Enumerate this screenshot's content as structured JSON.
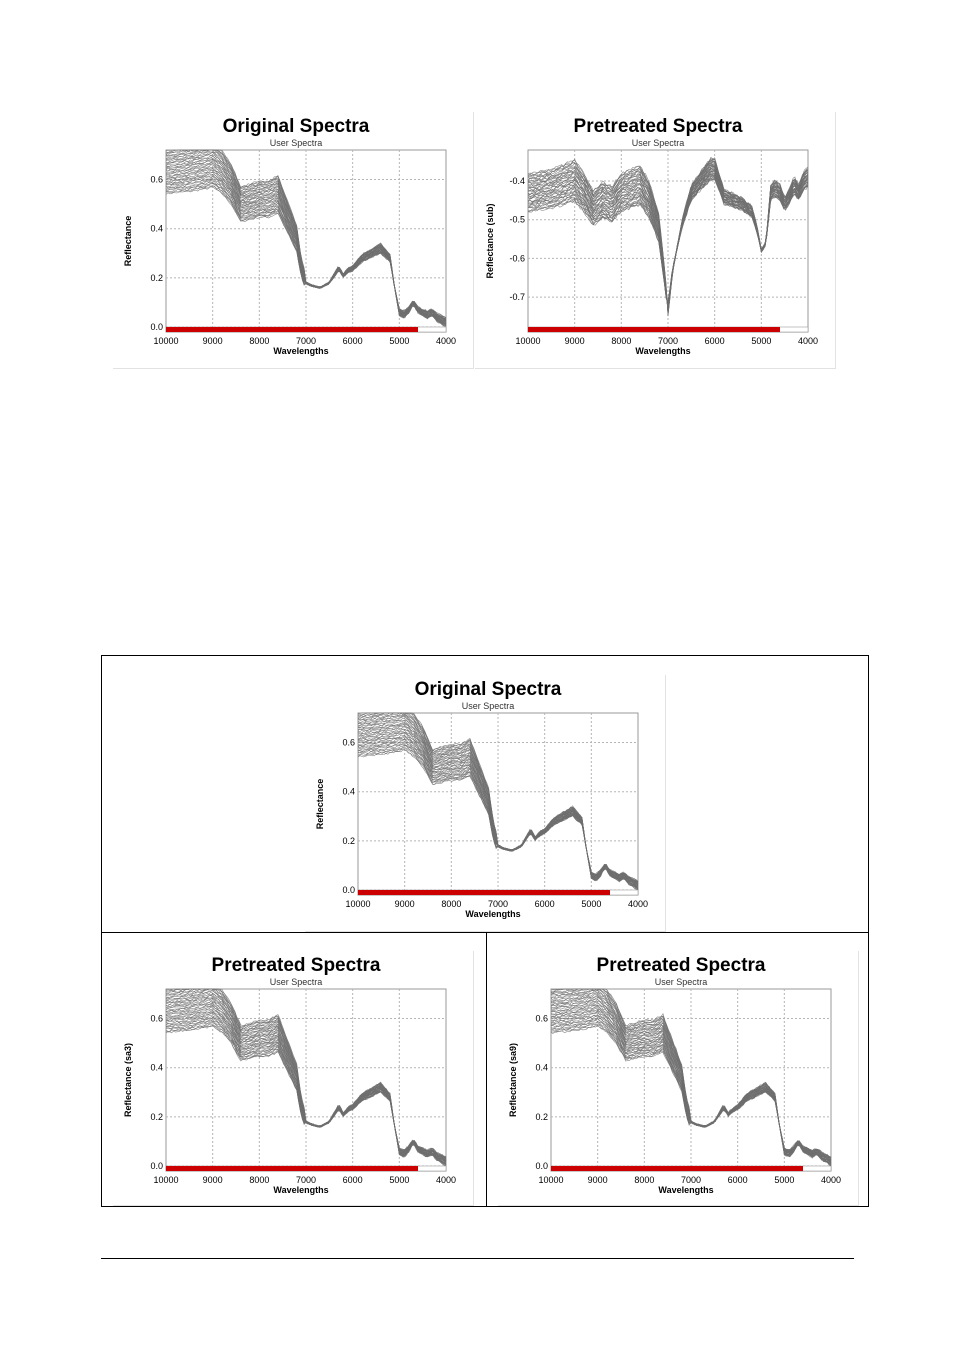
{
  "chart_data": [
    {
      "type": "line",
      "title": "Original Spectra",
      "subtitle": "User Spectra",
      "xlabel": "Wavelengths",
      "ylabel": "Reflectance",
      "x_reversed": true,
      "xlim": [
        10000,
        4000
      ],
      "ylim": [
        -0.02,
        0.72
      ],
      "xticks": [
        10000,
        9000,
        8000,
        7000,
        6000,
        5000,
        4000
      ],
      "yticks": [
        0.0,
        0.2,
        0.4,
        0.6
      ],
      "ytick_labels": [
        "0.0",
        "0.2",
        "0.4",
        "0.6"
      ],
      "grid": true,
      "selection_bar": {
        "from": 10000,
        "to": 4600,
        "color": "#cc0000"
      },
      "line_color": "#6e6e6e",
      "series_count": 42,
      "spread": 0.09,
      "profile": {
        "x": [
          10000,
          9500,
          9200,
          9000,
          8800,
          8600,
          8400,
          8200,
          8000,
          7800,
          7600,
          7400,
          7200,
          7100,
          7000,
          6900,
          6700,
          6500,
          6300,
          6200,
          6100,
          6000,
          5800,
          5600,
          5400,
          5200,
          5100,
          5000,
          4900,
          4800,
          4700,
          4600,
          4500,
          4400,
          4300,
          4200,
          4100,
          4000
        ],
        "y": [
          0.63,
          0.64,
          0.65,
          0.66,
          0.63,
          0.58,
          0.5,
          0.51,
          0.52,
          0.52,
          0.54,
          0.45,
          0.36,
          0.24,
          0.18,
          0.17,
          0.16,
          0.18,
          0.24,
          0.21,
          0.23,
          0.24,
          0.28,
          0.3,
          0.32,
          0.28,
          0.16,
          0.06,
          0.05,
          0.07,
          0.1,
          0.07,
          0.06,
          0.05,
          0.06,
          0.04,
          0.03,
          0.02
        ]
      }
    },
    {
      "type": "line",
      "title": "Pretreated Spectra",
      "subtitle": "User Spectra",
      "xlabel": "Wavelengths",
      "ylabel": "Reflectance (sub)",
      "x_reversed": true,
      "xlim": [
        10000,
        4000
      ],
      "ylim": [
        -0.79,
        -0.32
      ],
      "xticks": [
        10000,
        9000,
        8000,
        7000,
        6000,
        5000,
        4000
      ],
      "yticks": [
        -0.4,
        -0.5,
        -0.6,
        -0.7
      ],
      "ytick_labels": [
        "-0.4",
        "-0.5",
        "-0.6",
        "-0.7"
      ],
      "grid": true,
      "selection_bar": {
        "from": 10000,
        "to": 4600,
        "color": "#cc0000"
      },
      "line_color": "#6e6e6e",
      "series_count": 42,
      "spread": 0.09,
      "profile": {
        "x": [
          10000,
          9500,
          9000,
          8800,
          8600,
          8400,
          8200,
          8000,
          7800,
          7600,
          7400,
          7200,
          7100,
          7000,
          6900,
          6700,
          6500,
          6300,
          6100,
          6000,
          5800,
          5600,
          5400,
          5200,
          5100,
          5000,
          4900,
          4800,
          4700,
          4600,
          4500,
          4400,
          4300,
          4200,
          4100,
          4000
        ],
        "y": [
          -0.43,
          -0.42,
          -0.4,
          -0.43,
          -0.47,
          -0.45,
          -0.46,
          -0.43,
          -0.42,
          -0.41,
          -0.45,
          -0.52,
          -0.62,
          -0.73,
          -0.63,
          -0.51,
          -0.43,
          -0.4,
          -0.37,
          -0.37,
          -0.44,
          -0.45,
          -0.46,
          -0.48,
          -0.52,
          -0.58,
          -0.56,
          -0.43,
          -0.42,
          -0.43,
          -0.46,
          -0.44,
          -0.41,
          -0.43,
          -0.4,
          -0.39
        ]
      }
    },
    {
      "type": "line",
      "title": "Original Spectra",
      "subtitle": "User Spectra",
      "xlabel": "Wavelengths",
      "ylabel": "Reflectance",
      "x_reversed": true,
      "xlim": [
        10000,
        4000
      ],
      "ylim": [
        -0.02,
        0.72
      ],
      "xticks": [
        10000,
        9000,
        8000,
        7000,
        6000,
        5000,
        4000
      ],
      "yticks": [
        0.0,
        0.2,
        0.4,
        0.6
      ],
      "ytick_labels": [
        "0.0",
        "0.2",
        "0.4",
        "0.6"
      ],
      "grid": true,
      "selection_bar": {
        "from": 10000,
        "to": 4600,
        "color": "#cc0000"
      },
      "line_color": "#6e6e6e",
      "series_count": 42,
      "spread": 0.09,
      "profile": {
        "x": [
          10000,
          9500,
          9200,
          9000,
          8800,
          8600,
          8400,
          8200,
          8000,
          7800,
          7600,
          7400,
          7200,
          7100,
          7000,
          6900,
          6700,
          6500,
          6300,
          6200,
          6100,
          6000,
          5800,
          5600,
          5400,
          5200,
          5100,
          5000,
          4900,
          4800,
          4700,
          4600,
          4500,
          4400,
          4300,
          4200,
          4100,
          4000
        ],
        "y": [
          0.63,
          0.64,
          0.65,
          0.66,
          0.63,
          0.58,
          0.5,
          0.51,
          0.52,
          0.52,
          0.54,
          0.45,
          0.36,
          0.24,
          0.18,
          0.17,
          0.16,
          0.18,
          0.24,
          0.21,
          0.23,
          0.24,
          0.28,
          0.3,
          0.32,
          0.28,
          0.16,
          0.06,
          0.05,
          0.07,
          0.1,
          0.07,
          0.06,
          0.05,
          0.06,
          0.04,
          0.03,
          0.02
        ]
      }
    },
    {
      "type": "line",
      "title": "Pretreated Spectra",
      "subtitle": "User Spectra",
      "xlabel": "Wavelengths",
      "ylabel": "Reflectance (sa3)",
      "x_reversed": true,
      "xlim": [
        10000,
        4000
      ],
      "ylim": [
        -0.02,
        0.72
      ],
      "xticks": [
        10000,
        9000,
        8000,
        7000,
        6000,
        5000,
        4000
      ],
      "yticks": [
        0.0,
        0.2,
        0.4,
        0.6
      ],
      "ytick_labels": [
        "0.0",
        "0.2",
        "0.4",
        "0.6"
      ],
      "grid": true,
      "selection_bar": {
        "from": 10000,
        "to": 4600,
        "color": "#cc0000"
      },
      "line_color": "#6e6e6e",
      "series_count": 42,
      "spread": 0.09,
      "profile": {
        "x": [
          10000,
          9500,
          9200,
          9000,
          8800,
          8600,
          8400,
          8200,
          8000,
          7800,
          7600,
          7400,
          7200,
          7100,
          7000,
          6900,
          6700,
          6500,
          6300,
          6200,
          6100,
          6000,
          5800,
          5600,
          5400,
          5200,
          5100,
          5000,
          4900,
          4800,
          4700,
          4600,
          4500,
          4400,
          4300,
          4200,
          4100,
          4000
        ],
        "y": [
          0.63,
          0.64,
          0.65,
          0.66,
          0.63,
          0.58,
          0.5,
          0.51,
          0.52,
          0.52,
          0.54,
          0.45,
          0.36,
          0.24,
          0.18,
          0.17,
          0.16,
          0.18,
          0.24,
          0.21,
          0.23,
          0.24,
          0.28,
          0.3,
          0.32,
          0.28,
          0.16,
          0.06,
          0.05,
          0.07,
          0.1,
          0.07,
          0.06,
          0.05,
          0.06,
          0.04,
          0.03,
          0.02
        ]
      }
    },
    {
      "type": "line",
      "title": "Pretreated Spectra",
      "subtitle": "User Spectra",
      "xlabel": "Wavelengths",
      "ylabel": "Reflectance (sa9)",
      "x_reversed": true,
      "xlim": [
        10000,
        4000
      ],
      "ylim": [
        -0.02,
        0.72
      ],
      "xticks": [
        10000,
        9000,
        8000,
        7000,
        6000,
        5000,
        4000
      ],
      "yticks": [
        0.0,
        0.2,
        0.4,
        0.6
      ],
      "ytick_labels": [
        "0.0",
        "0.2",
        "0.4",
        "0.6"
      ],
      "grid": true,
      "selection_bar": {
        "from": 10000,
        "to": 4600,
        "color": "#cc0000"
      },
      "line_color": "#6e6e6e",
      "series_count": 42,
      "spread": 0.09,
      "profile": {
        "x": [
          10000,
          9500,
          9200,
          9000,
          8800,
          8600,
          8400,
          8200,
          8000,
          7800,
          7600,
          7400,
          7200,
          7100,
          7000,
          6900,
          6700,
          6500,
          6300,
          6200,
          6100,
          6000,
          5800,
          5600,
          5400,
          5200,
          5100,
          5000,
          4900,
          4800,
          4700,
          4600,
          4500,
          4400,
          4300,
          4200,
          4100,
          4000
        ],
        "y": [
          0.63,
          0.64,
          0.65,
          0.66,
          0.63,
          0.58,
          0.5,
          0.51,
          0.52,
          0.52,
          0.54,
          0.45,
          0.36,
          0.24,
          0.18,
          0.17,
          0.16,
          0.18,
          0.24,
          0.21,
          0.23,
          0.24,
          0.28,
          0.3,
          0.32,
          0.28,
          0.16,
          0.06,
          0.05,
          0.07,
          0.1,
          0.07,
          0.06,
          0.05,
          0.06,
          0.04,
          0.03,
          0.02
        ]
      }
    }
  ]
}
